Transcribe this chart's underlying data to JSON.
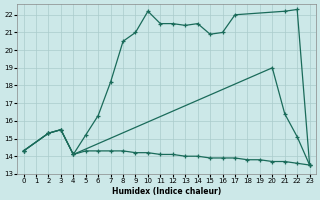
{
  "xlabel": "Humidex (Indice chaleur)",
  "bg_color": "#cce8e8",
  "grid_color": "#aacccc",
  "line_color": "#1a6b5a",
  "xlim": [
    -0.5,
    23.5
  ],
  "ylim": [
    13,
    22.6
  ],
  "yticks": [
    13,
    14,
    15,
    16,
    17,
    18,
    19,
    20,
    21,
    22
  ],
  "xticks": [
    0,
    1,
    2,
    3,
    4,
    5,
    6,
    7,
    8,
    9,
    10,
    11,
    12,
    13,
    14,
    15,
    16,
    17,
    18,
    19,
    20,
    21,
    22,
    23
  ],
  "line1_x": [
    0,
    2,
    3,
    4,
    5,
    6,
    7,
    8,
    9,
    10,
    11,
    12,
    13,
    14,
    15,
    16,
    17,
    21,
    22,
    23
  ],
  "line1_y": [
    14.3,
    15.3,
    15.5,
    14.1,
    15.2,
    16.3,
    18.2,
    20.5,
    21.0,
    22.2,
    21.5,
    21.5,
    21.4,
    21.5,
    20.9,
    21.0,
    22.0,
    22.2,
    22.3,
    13.5
  ],
  "line2_x": [
    0,
    2,
    3,
    4,
    20,
    21,
    22,
    23
  ],
  "line2_y": [
    14.3,
    15.3,
    15.5,
    14.1,
    19.0,
    16.4,
    15.1,
    13.5
  ],
  "line3_x": [
    0,
    2,
    3,
    4,
    5,
    6,
    7,
    8,
    9,
    10,
    11,
    12,
    13,
    14,
    15,
    16,
    17,
    18,
    19,
    20,
    21,
    22,
    23
  ],
  "line3_y": [
    14.3,
    15.3,
    15.5,
    14.1,
    14.3,
    14.3,
    14.3,
    14.3,
    14.2,
    14.2,
    14.1,
    14.1,
    14.0,
    14.0,
    13.9,
    13.9,
    13.9,
    13.8,
    13.8,
    13.7,
    13.7,
    13.6,
    13.5
  ]
}
